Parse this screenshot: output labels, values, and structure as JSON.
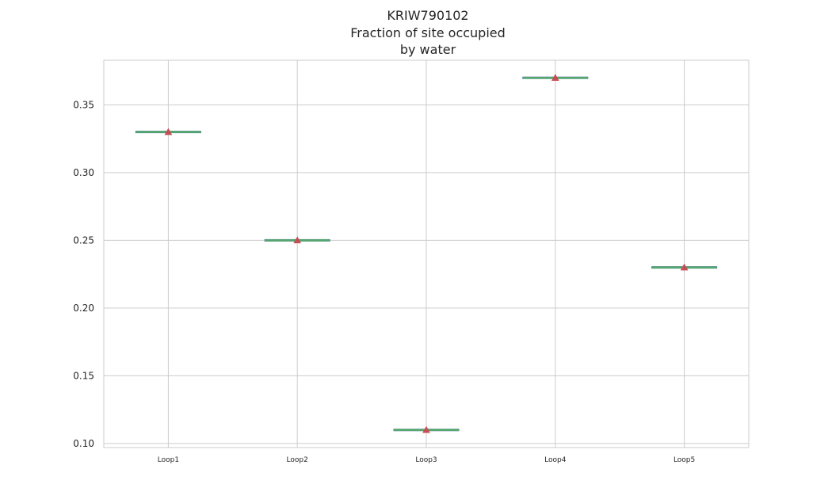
{
  "chart_data": {
    "type": "box",
    "title_lines": [
      "KRIW790102",
      "Fraction of site occupied",
      "by water"
    ],
    "xlabel": "",
    "ylabel": "",
    "categories": [
      "Loop1",
      "Loop2",
      "Loop3",
      "Loop4",
      "Loop5"
    ],
    "values": [
      0.33,
      0.25,
      0.11,
      0.37,
      0.23
    ],
    "means": [
      0.33,
      0.25,
      0.11,
      0.37,
      0.23
    ],
    "ylim": [
      0.097,
      0.383
    ],
    "yticks": [
      0.1,
      0.15,
      0.2,
      0.25,
      0.3,
      0.35
    ],
    "ytick_labels": [
      "0.10",
      "0.15",
      "0.20",
      "0.25",
      "0.30",
      "0.35"
    ],
    "grid": true,
    "colors": {
      "box_line": "#4c72b0",
      "median": "#55a868",
      "mean_marker": "#c44e52",
      "grid": "#cccccc"
    }
  }
}
